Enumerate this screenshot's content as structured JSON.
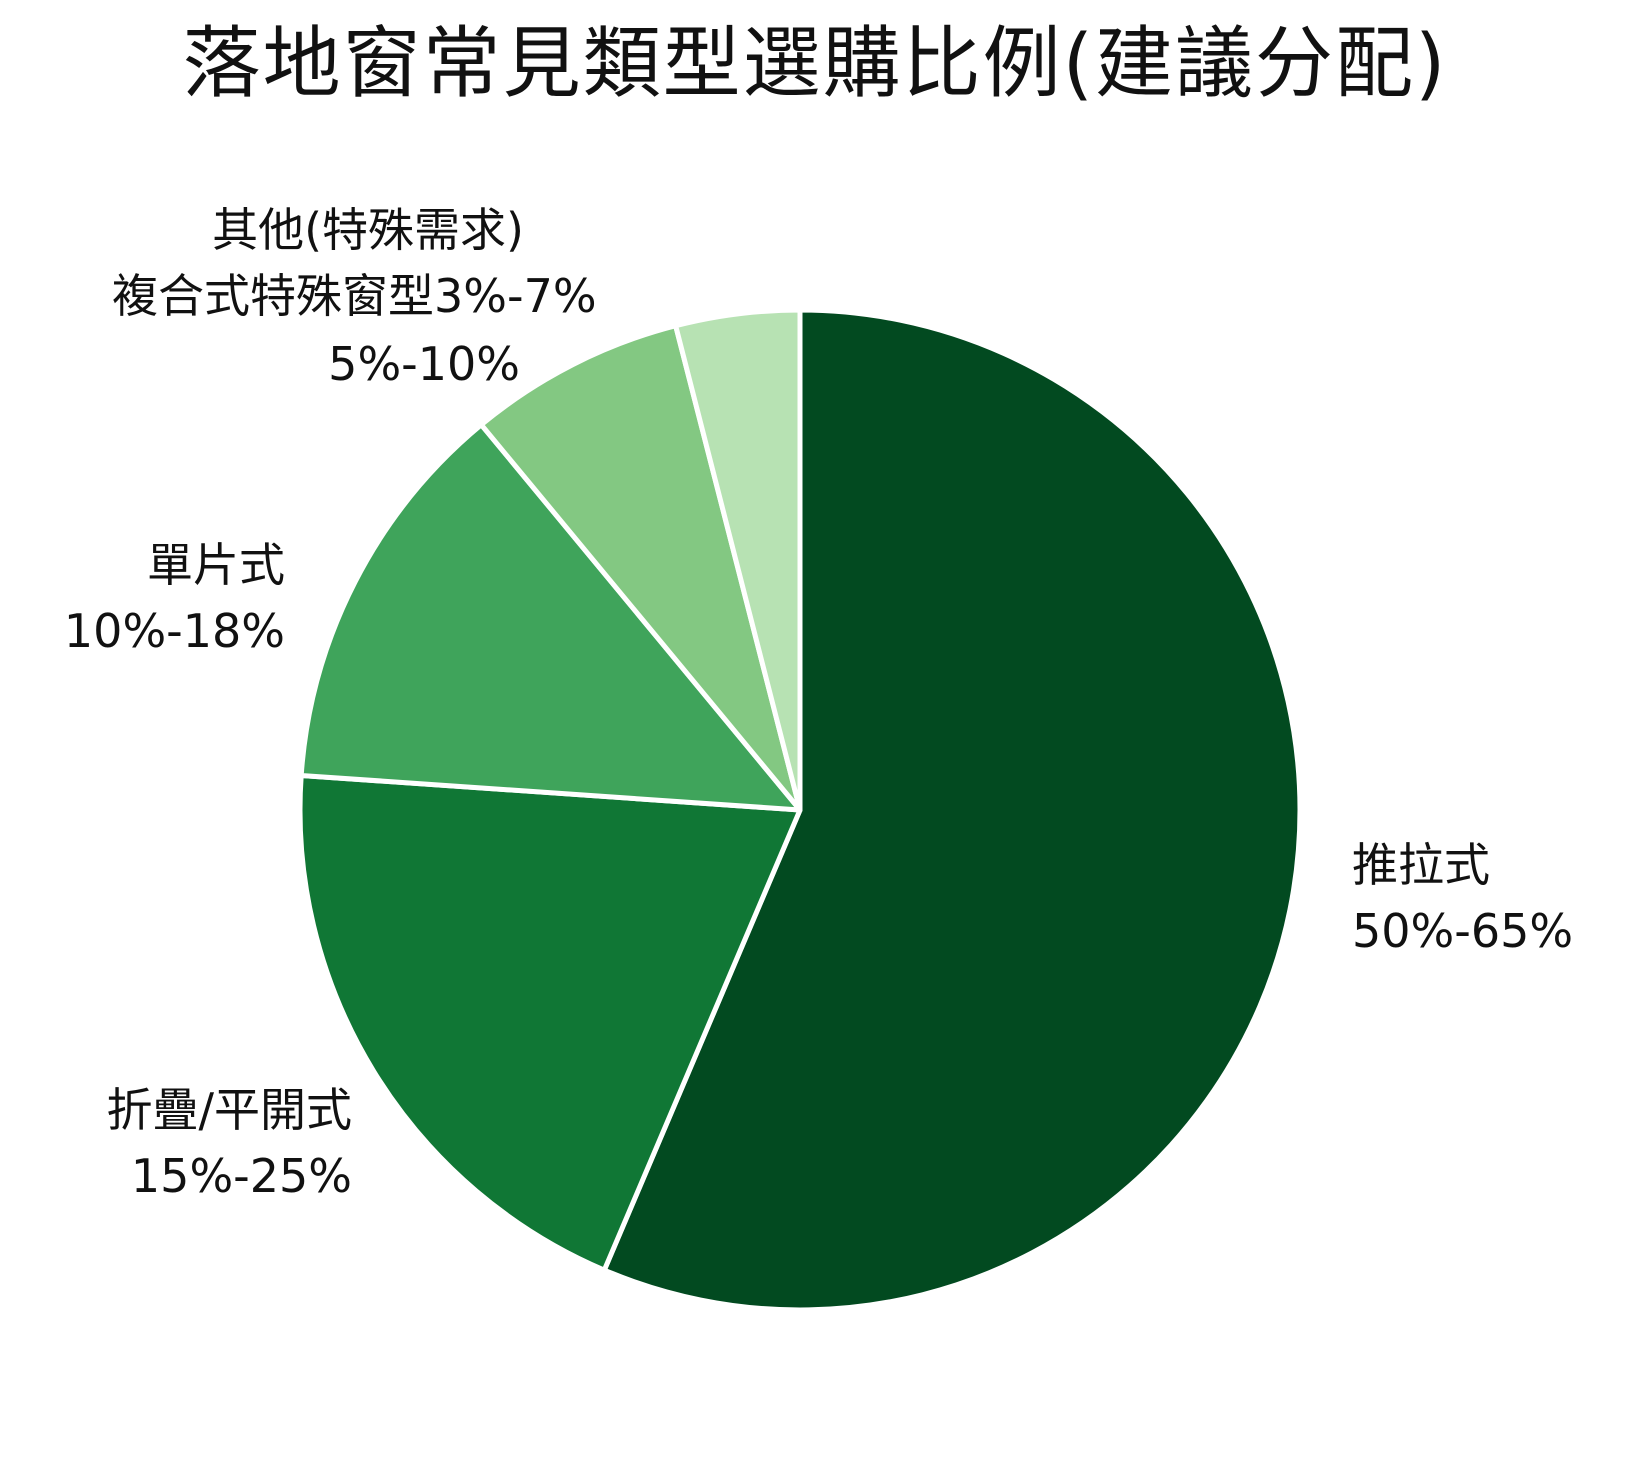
{
  "chart_data": {
    "type": "pie",
    "title": "落地窗常見類型選購比例(建議分配)",
    "start_angle_deg": 0,
    "direction": "clockwise",
    "slices": [
      {
        "name": "推拉式",
        "range_label": "50%-65%",
        "value": 56.4,
        "color": "#024a20"
      },
      {
        "name": "折疊/平開式",
        "range_label": "15%-25%",
        "value": 19.7,
        "color": "#107735"
      },
      {
        "name": "單片式",
        "range_label": "10%-18%",
        "value": 12.9,
        "color": "#3fa45b"
      },
      {
        "name": "複合式特殊窗型",
        "range_label": "5%-10%",
        "value": 7.0,
        "color": "#83c882"
      },
      {
        "name": "其他(特殊需求)",
        "range_label": "3%-7%",
        "value": 4.0,
        "color": "#b7e2b3"
      }
    ]
  }
}
